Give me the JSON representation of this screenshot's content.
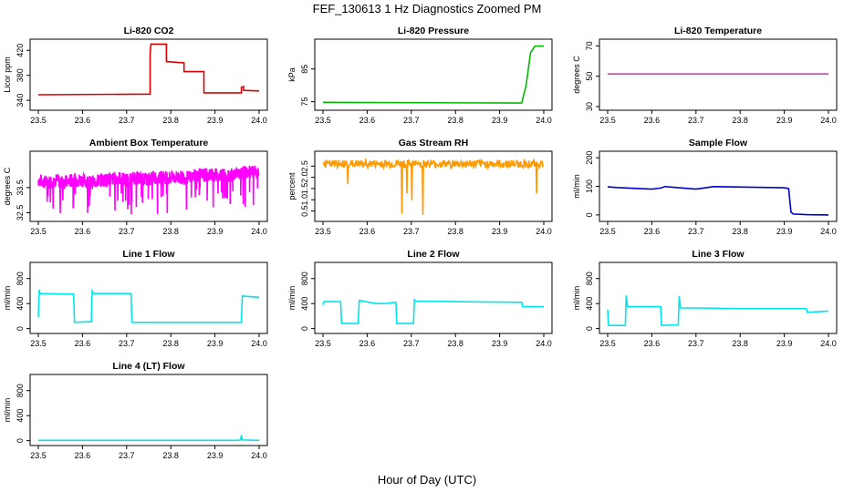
{
  "figure": {
    "title": "FEF_130613  1 Hz Diagnostics Zoomed PM",
    "xlabel": "Hour of Day (UTC)"
  },
  "chart_data": [
    {
      "type": "line",
      "title": "Li-820 CO2",
      "ylabel": "Licor ppm",
      "color": "#dd0000",
      "xlim": [
        23.5,
        24.0
      ],
      "ylim": [
        330,
        432
      ],
      "xticks": [
        "23.5",
        "23.6",
        "23.7",
        "23.8",
        "23.9",
        "24.0"
      ],
      "yticks": [
        "340",
        "380",
        "420"
      ],
      "series": [
        {
          "x": [
            23.5,
            23.753,
            23.753,
            23.755,
            23.755,
            23.79,
            23.79,
            23.83,
            23.83,
            23.875,
            23.875,
            23.96,
            23.96,
            23.965,
            23.965,
            24.0
          ],
          "y": [
            349,
            350,
            413,
            430,
            430,
            430,
            402,
            400,
            386,
            386,
            352,
            352,
            361,
            362,
            356,
            355
          ]
        }
      ]
    },
    {
      "type": "line",
      "title": "Li-820 Pressure",
      "ylabel": "kPa",
      "color": "#00bb00",
      "xlim": [
        23.5,
        24.0
      ],
      "ylim": [
        73.5,
        93
      ],
      "xticks": [
        "23.5",
        "23.6",
        "23.7",
        "23.8",
        "23.9",
        "24.0"
      ],
      "yticks": [
        "75",
        "85"
      ],
      "series": [
        {
          "x": [
            23.5,
            23.95,
            23.96,
            23.97,
            23.98,
            24.0
          ],
          "y": [
            74.8,
            74.6,
            80,
            90,
            92,
            92
          ]
        }
      ]
    },
    {
      "type": "line",
      "title": "Li-820 Temperature",
      "ylabel": "degrees C",
      "color": "#cc44aa",
      "xlim": [
        23.5,
        24.0
      ],
      "ylim": [
        30,
        72
      ],
      "xticks": [
        "23.5",
        "23.6",
        "23.7",
        "23.8",
        "23.9",
        "24.0"
      ],
      "yticks": [
        "30",
        "50",
        "70"
      ],
      "series": [
        {
          "x": [
            23.5,
            24.0
          ],
          "y": [
            51.5,
            51.5
          ]
        }
      ]
    },
    {
      "type": "line",
      "title": "Ambient Box Temperature",
      "ylabel": "degrees C",
      "color": "#ff00ff",
      "xlim": [
        23.5,
        24.0
      ],
      "ylim": [
        32.3,
        34.8
      ],
      "xticks": [
        "23.5",
        "23.6",
        "23.7",
        "23.8",
        "23.9",
        "24.0"
      ],
      "yticks": [
        "32.5",
        "33.5"
      ],
      "series": [
        {
          "x": [
            23.5,
            23.52,
            23.54,
            23.56,
            23.58,
            23.6,
            23.62,
            23.64,
            23.66,
            23.68,
            23.7,
            23.72,
            23.74,
            23.76,
            23.78,
            23.8,
            23.82,
            23.84,
            23.86,
            23.88,
            23.9,
            23.92,
            23.94,
            23.96,
            23.98,
            24.0
          ],
          "y": [
            33.8,
            33.7,
            33.8,
            33.7,
            33.8,
            33.8,
            33.7,
            33.8,
            33.8,
            33.9,
            33.8,
            33.9,
            33.8,
            33.9,
            33.9,
            33.9,
            33.9,
            33.9,
            34.0,
            34.0,
            34.0,
            34.0,
            34.0,
            34.1,
            34.1,
            34.1
          ]
        }
      ]
    },
    {
      "type": "line",
      "title": "Gas Stream RH",
      "ylabel": "percent",
      "color": "#ff9900",
      "xlim": [
        23.5,
        24.0
      ],
      "ylim": [
        0.2,
        3.0
      ],
      "xticks": [
        "23.5",
        "23.6",
        "23.7",
        "23.8",
        "23.9",
        "24.0"
      ],
      "yticks": [
        "0.5",
        "1.0",
        "1.5",
        "2.0",
        "2.5"
      ],
      "series": [
        {
          "x": [
            23.5,
            23.55,
            23.6,
            23.65,
            23.7,
            23.75,
            23.8,
            23.85,
            23.9,
            23.95,
            24.0
          ],
          "y": [
            2.6,
            2.6,
            2.6,
            2.6,
            2.6,
            2.6,
            2.6,
            2.6,
            2.6,
            2.6,
            2.6
          ]
        }
      ]
    },
    {
      "type": "line",
      "title": "Sample Flow",
      "ylabel": "ml/min",
      "color": "#0000cc",
      "xlim": [
        23.5,
        24.0
      ],
      "ylim": [
        -10,
        210
      ],
      "xticks": [
        "23.5",
        "23.6",
        "23.7",
        "23.8",
        "23.9",
        "24.0"
      ],
      "yticks": [
        "0",
        "100",
        "200"
      ],
      "series": [
        {
          "x": [
            23.5,
            23.52,
            23.6,
            23.62,
            23.63,
            23.7,
            23.74,
            23.9,
            23.91,
            23.915,
            23.92,
            23.95,
            24.0
          ],
          "y": [
            98,
            96,
            90,
            94,
            99,
            90,
            99,
            95,
            92,
            10,
            3,
            1,
            0
          ]
        }
      ]
    },
    {
      "type": "line",
      "title": "Line 1 Flow",
      "ylabel": "ml/min",
      "color": "#00e5ee",
      "xlim": [
        23.5,
        24.0
      ],
      "ylim": [
        -20,
        1000
      ],
      "xticks": [
        "23.5",
        "23.6",
        "23.7",
        "23.8",
        "23.9",
        "24.0"
      ],
      "yticks": [
        "0",
        "400",
        "800"
      ],
      "series": [
        {
          "x": [
            23.5,
            23.502,
            23.504,
            23.58,
            23.582,
            23.62,
            23.622,
            23.625,
            23.71,
            23.712,
            23.8,
            23.96,
            23.962,
            24.0
          ],
          "y": [
            180,
            620,
            560,
            550,
            100,
            110,
            600,
            560,
            560,
            100,
            100,
            100,
            520,
            500
          ]
        }
      ]
    },
    {
      "type": "line",
      "title": "Line 2 Flow",
      "ylabel": "ml/min",
      "color": "#00e5ee",
      "xlim": [
        23.5,
        24.0
      ],
      "ylim": [
        -20,
        1000
      ],
      "xticks": [
        "23.5",
        "23.6",
        "23.7",
        "23.8",
        "23.9",
        "24.0"
      ],
      "yticks": [
        "0",
        "400",
        "800"
      ],
      "series": [
        {
          "x": [
            23.5,
            23.502,
            23.54,
            23.542,
            23.58,
            23.582,
            23.62,
            23.64,
            23.665,
            23.667,
            23.705,
            23.707,
            23.71,
            23.8,
            23.95,
            23.952,
            24.0
          ],
          "y": [
            380,
            430,
            430,
            80,
            80,
            450,
            400,
            400,
            420,
            80,
            80,
            460,
            440,
            430,
            420,
            350,
            350
          ]
        }
      ]
    },
    {
      "type": "line",
      "title": "Line 3 Flow",
      "ylabel": "ml/min",
      "color": "#00e5ee",
      "xlim": [
        23.5,
        24.0
      ],
      "ylim": [
        -20,
        1000
      ],
      "xticks": [
        "23.5",
        "23.6",
        "23.7",
        "23.8",
        "23.9",
        "24.0"
      ],
      "yticks": [
        "0",
        "400",
        "800"
      ],
      "series": [
        {
          "x": [
            23.5,
            23.502,
            23.54,
            23.542,
            23.545,
            23.62,
            23.622,
            23.66,
            23.662,
            23.665,
            23.7,
            23.8,
            23.95,
            23.952,
            24.0
          ],
          "y": [
            300,
            50,
            50,
            530,
            350,
            350,
            50,
            60,
            520,
            330,
            330,
            320,
            320,
            260,
            280
          ]
        }
      ]
    },
    {
      "type": "line",
      "title": "Line 4 (LT) Flow",
      "ylabel": "ml/min",
      "color": "#00e5ee",
      "xlim": [
        23.5,
        24.0
      ],
      "ylim": [
        -20,
        1000
      ],
      "xticks": [
        "23.5",
        "23.6",
        "23.7",
        "23.8",
        "23.9",
        "24.0"
      ],
      "yticks": [
        "0",
        "400",
        "800"
      ],
      "series": [
        {
          "x": [
            23.5,
            23.95,
            23.958,
            23.96,
            23.962,
            24.0
          ],
          "y": [
            5,
            5,
            10,
            90,
            10,
            5
          ]
        }
      ]
    }
  ]
}
